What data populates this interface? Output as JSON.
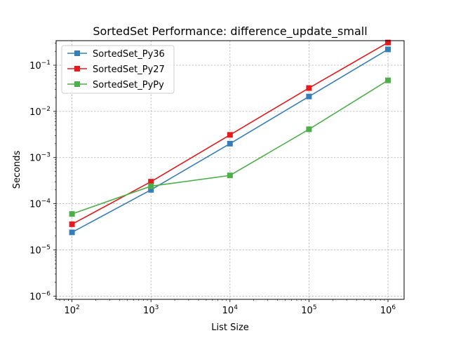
{
  "chart_data": {
    "type": "line",
    "title": "SortedSet Performance: difference_update_small",
    "xlabel": "List Size",
    "ylabel": "Seconds",
    "xscale": "log",
    "yscale": "log",
    "xlim": [
      63,
      1600000
    ],
    "ylim": [
      8.5e-07,
      0.34
    ],
    "grid": true,
    "legend_position": "top-left",
    "x": [
      100,
      1000,
      10000,
      100000,
      1000000
    ],
    "xticks": [
      {
        "value": 100,
        "base": "10",
        "exp": "2"
      },
      {
        "value": 1000,
        "base": "10",
        "exp": "3"
      },
      {
        "value": 10000,
        "base": "10",
        "exp": "4"
      },
      {
        "value": 100000,
        "base": "10",
        "exp": "5"
      },
      {
        "value": 1000000,
        "base": "10",
        "exp": "6"
      }
    ],
    "yticks": [
      {
        "value": 1e-06,
        "base": "10",
        "exp": "−6"
      },
      {
        "value": 1e-05,
        "base": "10",
        "exp": "−5"
      },
      {
        "value": 0.0001,
        "base": "10",
        "exp": "−4"
      },
      {
        "value": 0.001,
        "base": "10",
        "exp": "−3"
      },
      {
        "value": 0.01,
        "base": "10",
        "exp": "−2"
      },
      {
        "value": 0.1,
        "base": "10",
        "exp": "−1"
      }
    ],
    "series": [
      {
        "name": "SortedSet_Py36",
        "color": "#377eb8",
        "marker": "square",
        "values": [
          2.4e-05,
          0.0002,
          0.002,
          0.021,
          0.22
        ]
      },
      {
        "name": "SortedSet_Py27",
        "color": "#e41a1c",
        "marker": "square",
        "values": [
          3.6e-05,
          0.0003,
          0.0031,
          0.032,
          0.31
        ]
      },
      {
        "name": "SortedSet_PyPy",
        "color": "#4daf4a",
        "marker": "square",
        "values": [
          6e-05,
          0.00024,
          0.00041,
          0.0041,
          0.047
        ]
      }
    ]
  }
}
